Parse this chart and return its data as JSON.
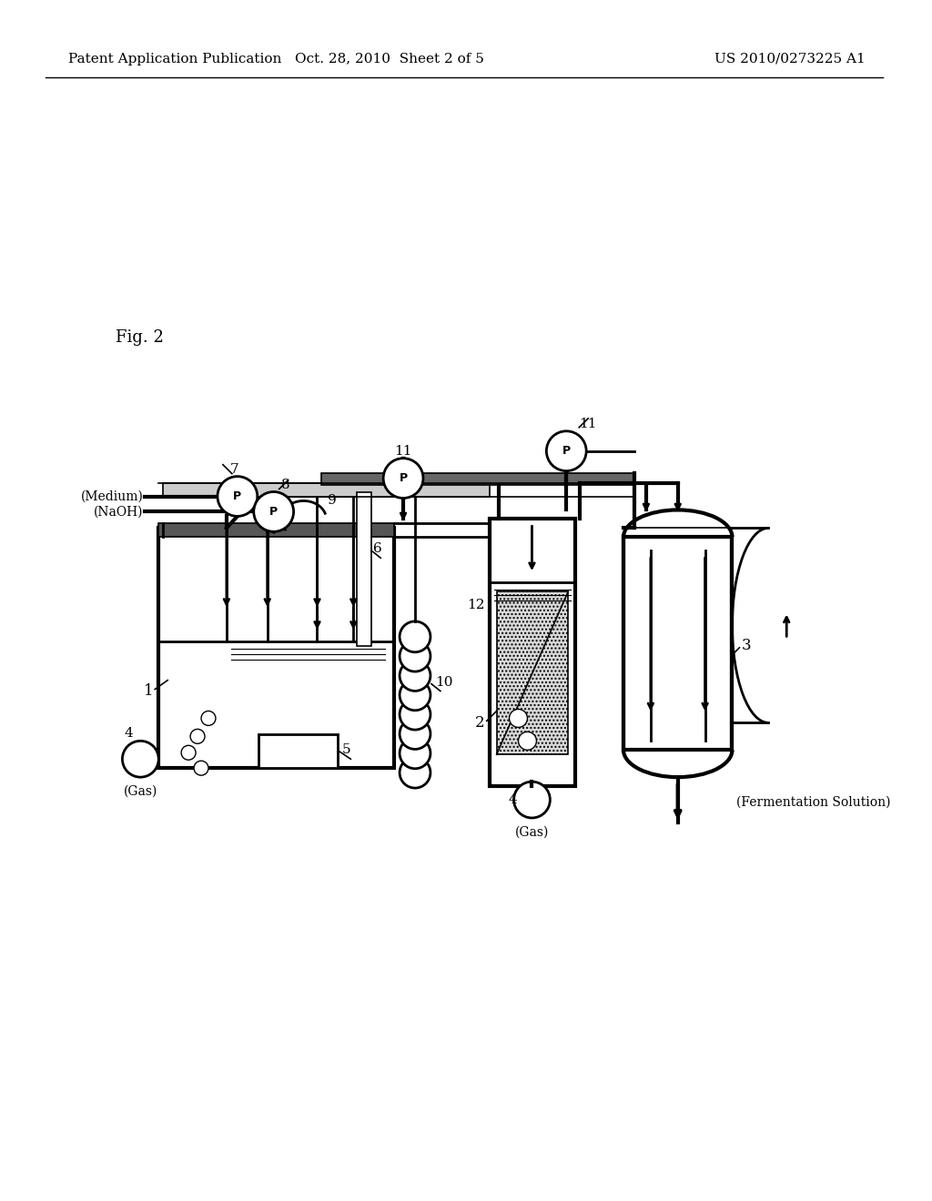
{
  "bg": "#ffffff",
  "lc": "#000000",
  "header_left": "Patent Application Publication",
  "header_mid": "Oct. 28, 2010  Sheet 2 of 5",
  "header_right": "US 2010/0273225 A1",
  "fig_label": "Fig. 2",
  "label_medium": "(Medium)",
  "label_naoh": "(NaOH)",
  "label_gas_left": "(Gas)",
  "label_gas_right": "(Gas)",
  "label_ferm": "(Fermentation Solution)",
  "nums": {
    "1": "1",
    "2": "2",
    "3": "3",
    "4": "4",
    "5": "5",
    "6": "6",
    "7": "7",
    "8": "8",
    "9": "9",
    "10": "10",
    "11": "11",
    "12": "12"
  }
}
